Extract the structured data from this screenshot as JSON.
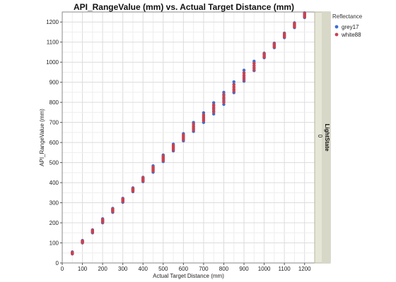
{
  "chart_data": {
    "type": "scatter",
    "title": "API_RangeValue (mm) vs. Actual Target Distance (mm)",
    "xlabel": "Actual Target Distance (mm)",
    "ylabel": "API_RangeValue (mm)",
    "xlim": [
      0,
      1250
    ],
    "ylim": [
      0,
      1250
    ],
    "xticks": [
      0,
      100,
      200,
      300,
      400,
      500,
      600,
      700,
      800,
      900,
      1000,
      1100,
      1200
    ],
    "yticks": [
      0,
      100,
      200,
      300,
      400,
      500,
      600,
      700,
      800,
      900,
      1000,
      1100,
      1200
    ],
    "grid": true,
    "legend": {
      "title": "Reflectance",
      "position": "top-right"
    },
    "facet": {
      "label": "LightState",
      "value": "0"
    },
    "series": [
      {
        "name": "grey17",
        "color": "#3a6fd1",
        "points": [
          {
            "x": 50,
            "y": [
              45,
              48,
              50,
              52,
              55
            ]
          },
          {
            "x": 100,
            "y": [
              100,
              103,
              106,
              109,
              112
            ]
          },
          {
            "x": 150,
            "y": [
              150,
              154,
              158,
              162,
              165
            ]
          },
          {
            "x": 200,
            "y": [
              200,
              205,
              210,
              215,
              220
            ]
          },
          {
            "x": 250,
            "y": [
              252,
              258,
              263,
              268,
              272
            ]
          },
          {
            "x": 300,
            "y": [
              302,
              308,
              313,
              318,
              322
            ]
          },
          {
            "x": 350,
            "y": [
              355,
              360,
              365,
              370,
              374
            ]
          },
          {
            "x": 400,
            "y": [
              405,
              411,
              417,
              422,
              427
            ]
          },
          {
            "x": 450,
            "y": [
              452,
              460,
              468,
              476,
              484
            ]
          },
          {
            "x": 500,
            "y": [
              505,
              513,
              522,
              530,
              538
            ]
          },
          {
            "x": 550,
            "y": [
              558,
              567,
              576,
              585,
              592
            ]
          },
          {
            "x": 600,
            "y": [
              608,
              618,
              627,
              636,
              644
            ]
          },
          {
            "x": 650,
            "y": [
              655,
              667,
              679,
              691,
              700
            ]
          },
          {
            "x": 700,
            "y": [
              700,
              712,
              724,
              736,
              748
            ]
          },
          {
            "x": 750,
            "y": [
              742,
              756,
              770,
              784,
              798
            ]
          },
          {
            "x": 800,
            "y": [
              790,
              805,
              820,
              835,
              850
            ]
          },
          {
            "x": 850,
            "y": [
              848,
              862,
              876,
              890,
              902
            ]
          },
          {
            "x": 900,
            "y": [
              905,
              918,
              932,
              946,
              960
            ]
          },
          {
            "x": 950,
            "y": [
              958,
              970,
              982,
              994,
              1005
            ]
          },
          {
            "x": 1000,
            "y": [
              1022,
              1028,
              1034,
              1040,
              1045
            ]
          },
          {
            "x": 1050,
            "y": [
              1072,
              1078,
              1084,
              1090,
              1095
            ]
          },
          {
            "x": 1100,
            "y": [
              1122,
              1128,
              1134,
              1140,
              1145
            ]
          },
          {
            "x": 1150,
            "y": [
              1172,
              1178,
              1184,
              1190,
              1196
            ]
          },
          {
            "x": 1200,
            "y": [
              1222,
              1228,
              1234,
              1240,
              1246
            ]
          }
        ]
      },
      {
        "name": "white88",
        "color": "#c8434f",
        "points": [
          {
            "x": 50,
            "y": [
              46,
              49,
              51,
              53
            ]
          },
          {
            "x": 100,
            "y": [
              102,
              105,
              108,
              110
            ]
          },
          {
            "x": 150,
            "y": [
              153,
              157,
              160,
              163
            ]
          },
          {
            "x": 200,
            "y": [
              204,
              208,
              212,
              216
            ]
          },
          {
            "x": 250,
            "y": [
              256,
              261,
              265,
              269
            ]
          },
          {
            "x": 300,
            "y": [
              306,
              311,
              315,
              319
            ]
          },
          {
            "x": 350,
            "y": [
              358,
              363,
              367,
              371
            ]
          },
          {
            "x": 400,
            "y": [
              409,
              414,
              419,
              424
            ]
          },
          {
            "x": 450,
            "y": [
              458,
              465,
              472,
              478
            ]
          },
          {
            "x": 500,
            "y": [
              510,
              518,
              525,
              532
            ]
          },
          {
            "x": 550,
            "y": [
              563,
              571,
              579,
              586
            ]
          },
          {
            "x": 600,
            "y": [
              614,
              622,
              630,
              638
            ]
          },
          {
            "x": 650,
            "y": [
              662,
              672,
              682,
              692
            ]
          },
          {
            "x": 700,
            "y": [
              708,
              718,
              728,
              738
            ]
          },
          {
            "x": 750,
            "y": [
              752,
              764,
              776,
              788
            ]
          },
          {
            "x": 800,
            "y": [
              800,
              813,
              826,
              840
            ]
          },
          {
            "x": 850,
            "y": [
              855,
              866,
              877,
              888
            ]
          },
          {
            "x": 900,
            "y": [
              912,
              924,
              936,
              948
            ]
          },
          {
            "x": 950,
            "y": [
              962,
              973,
              984,
              995
            ]
          },
          {
            "x": 1000,
            "y": [
              1025,
              1031,
              1037,
              1042
            ]
          },
          {
            "x": 1050,
            "y": [
              1075,
              1081,
              1087,
              1092
            ]
          },
          {
            "x": 1100,
            "y": [
              1125,
              1131,
              1137,
              1142
            ]
          },
          {
            "x": 1150,
            "y": [
              1175,
              1181,
              1187,
              1193
            ]
          },
          {
            "x": 1200,
            "y": [
              1225,
              1231,
              1237,
              1243
            ]
          }
        ]
      }
    ]
  }
}
